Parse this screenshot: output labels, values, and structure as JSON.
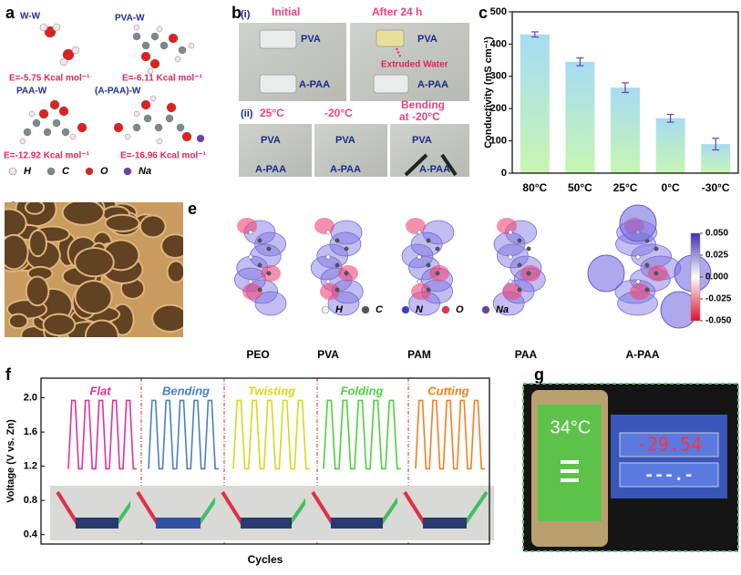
{
  "panel_a": {
    "label": "a",
    "complexes": [
      {
        "name": "W-W",
        "energy": "E=-5.75 Kcal mol⁻¹"
      },
      {
        "name": "PVA-W",
        "energy": "E=-6.11 Kcal mol⁻¹"
      },
      {
        "name": "PAA-W",
        "energy": "E=-12.92 Kcal mol⁻¹"
      },
      {
        "name": "(A-PAA)-W",
        "energy": "E=-16.96 Kcal mol⁻¹"
      }
    ],
    "atoms": [
      {
        "symbol": "H",
        "color": "#f4e6e6"
      },
      {
        "symbol": "C",
        "color": "#7d8a8c"
      },
      {
        "symbol": "O",
        "color": "#e02020"
      },
      {
        "symbol": "Na",
        "color": "#6a3fb0"
      }
    ]
  },
  "panel_b": {
    "label": "b",
    "row1": "(i)",
    "initial": "Initial",
    "after": "After 24 h",
    "pva": "PVA",
    "apaa": "A-PAA",
    "extruded": "Extruded Water",
    "row2": "(ii)",
    "t1": "25°C",
    "t2": "-20°C",
    "t3_line1": "Bending",
    "t3_line2": "at -20°C"
  },
  "panel_d": {
    "label": "d"
  },
  "panel_e": {
    "label": "e",
    "molecules": [
      "PEO",
      "PVA",
      "PAM",
      "PAA",
      "A-PAA"
    ],
    "atoms": [
      {
        "symbol": "H",
        "color": "#f2f2f2"
      },
      {
        "symbol": "C",
        "color": "#555555"
      },
      {
        "symbol": "N",
        "color": "#3a3adf"
      },
      {
        "symbol": "O",
        "color": "#f03040"
      },
      {
        "symbol": "Na",
        "color": "#6a3fb0"
      }
    ],
    "colorbar": {
      "lim": [
        -0.05,
        0.05
      ],
      "colors": [
        "#e0102a",
        "#ffffff",
        "#3a2fb0"
      ],
      "ticks": [
        {
          "value": 0.05,
          "label": "0.050"
        },
        {
          "value": 0.025,
          "label": "0.025"
        },
        {
          "value": 0,
          "label": "0.000"
        },
        {
          "value": -0.025,
          "label": "-0.025"
        },
        {
          "value": -0.05,
          "label": "-0.050"
        }
      ]
    }
  },
  "panel_g": {
    "label": "g",
    "phone_temp": "34°C",
    "reading": "-29.54",
    "reading2": "---.-"
  },
  "chart_data": [
    {
      "type": "bar",
      "label": "c",
      "y_label": "Conductivity (mS cm⁻¹)",
      "categories": [
        "80°C",
        "50°C",
        "25°C",
        "0°C",
        "-30°C"
      ],
      "values": [
        430,
        345,
        265,
        170,
        90
      ],
      "errors": [
        8,
        12,
        15,
        12,
        18
      ],
      "color_top": "#a6dcf2",
      "color_bottom": "#c8f5b2",
      "error_color": "#7040b0",
      "ylim": [
        0,
        500
      ],
      "yticks": [
        0,
        100,
        200,
        300,
        400,
        500
      ]
    },
    {
      "type": "line",
      "label": "f",
      "y_label": "Voltage (V vs. Zn)",
      "x_label": "Cycles",
      "ylim": [
        0.29,
        2.23
      ],
      "yticks": [
        0.4,
        0.8,
        1.2,
        1.6,
        {
          "value": 2,
          "label": "2.0"
        }
      ],
      "series": [
        {
          "name": "Flat",
          "color": "#e0309a",
          "values": [
            1.17,
            1.97,
            1.97,
            1.17,
            1.17,
            1.97,
            1.97,
            1.17,
            1.17,
            1.97,
            1.97,
            1.17,
            1.17,
            1.97,
            1.97,
            1.17,
            1.17,
            1.97,
            1.97,
            1.17,
            1.17
          ]
        },
        {
          "name": "Bending",
          "color": "#4a7fc0",
          "values": [
            1.17,
            1.97,
            1.97,
            1.17,
            1.17,
            1.97,
            1.97,
            1.17,
            1.17,
            1.97,
            1.97,
            1.17,
            1.17,
            1.97,
            1.97,
            1.17,
            1.17,
            1.97,
            1.97,
            1.17,
            1.17
          ]
        },
        {
          "name": "Twisting",
          "color": "#d6d81c",
          "values": [
            1.17,
            1.97,
            1.97,
            1.17,
            1.17,
            1.97,
            1.97,
            1.17,
            1.17,
            1.97,
            1.97,
            1.17,
            1.17,
            1.97,
            1.97,
            1.17,
            1.17,
            1.97,
            1.97,
            1.17,
            1.17
          ]
        },
        {
          "name": "Folding",
          "color": "#4cd03c",
          "values": [
            1.17,
            1.97,
            1.97,
            1.17,
            1.17,
            1.97,
            1.97,
            1.17,
            1.17,
            1.97,
            1.97,
            1.17,
            1.17,
            1.97,
            1.97,
            1.17,
            1.17,
            1.97,
            1.97,
            1.17,
            1.17
          ]
        },
        {
          "name": "Cutting",
          "color": "#f08020",
          "values": [
            1.17,
            1.97,
            1.97,
            1.17,
            1.17,
            1.97,
            1.97,
            1.17,
            1.17,
            1.97,
            1.97,
            1.17,
            1.17,
            1.97,
            1.97,
            1.17,
            1.17,
            1.97,
            1.97,
            1.17,
            1.17
          ]
        }
      ]
    }
  ]
}
